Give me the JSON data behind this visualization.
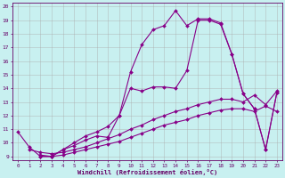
{
  "xlabel": "Windchill (Refroidissement éolien,°C)",
  "xlim": [
    -0.5,
    23.5
  ],
  "ylim": [
    8.7,
    20.3
  ],
  "xticks": [
    0,
    1,
    2,
    3,
    4,
    5,
    6,
    7,
    8,
    9,
    10,
    11,
    12,
    13,
    14,
    15,
    16,
    17,
    18,
    19,
    20,
    21,
    22,
    23
  ],
  "yticks": [
    9,
    10,
    11,
    12,
    13,
    14,
    15,
    16,
    17,
    18,
    19,
    20
  ],
  "bg_color": "#c8f0f0",
  "line_color": "#880088",
  "grid_color": "#aaaaaa",
  "lines": [
    {
      "x": [
        0,
        1,
        2,
        3,
        4,
        5,
        6,
        7,
        8,
        9,
        10,
        11,
        12,
        13,
        14,
        15,
        16,
        17,
        18,
        19,
        20,
        21,
        22,
        23
      ],
      "y": [
        10.8,
        9.7,
        9.0,
        9.0,
        9.5,
        9.8,
        10.2,
        10.5,
        10.4,
        12.0,
        15.2,
        17.2,
        18.3,
        18.6,
        19.7,
        18.6,
        19.1,
        19.1,
        18.8,
        16.5,
        13.6,
        12.5,
        9.5,
        13.7
      ]
    },
    {
      "x": [
        2,
        3,
        4,
        5,
        6,
        7,
        8,
        9,
        10,
        11,
        12,
        13,
        14,
        15,
        16,
        17,
        18,
        19,
        20,
        21,
        22,
        23
      ],
      "y": [
        9.0,
        9.0,
        9.5,
        10.0,
        10.5,
        10.8,
        11.2,
        12.0,
        14.0,
        13.8,
        14.1,
        14.1,
        14.0,
        15.3,
        19.0,
        19.0,
        18.7,
        16.5,
        13.6,
        12.5,
        9.5,
        13.7
      ]
    },
    {
      "x": [
        1,
        2,
        3,
        4,
        5,
        6,
        7,
        8,
        9,
        10,
        11,
        12,
        13,
        14,
        15,
        16,
        17,
        18,
        19,
        20,
        21,
        22,
        23
      ],
      "y": [
        9.5,
        9.3,
        9.2,
        9.3,
        9.5,
        9.7,
        10.0,
        10.3,
        10.6,
        11.0,
        11.3,
        11.7,
        12.0,
        12.3,
        12.5,
        12.8,
        13.0,
        13.2,
        13.2,
        13.0,
        13.5,
        12.8,
        13.8
      ]
    },
    {
      "x": [
        2,
        3,
        4,
        5,
        6,
        7,
        8,
        9,
        10,
        11,
        12,
        13,
        14,
        15,
        16,
        17,
        18,
        19,
        20,
        21,
        22,
        23
      ],
      "y": [
        9.1,
        9.0,
        9.1,
        9.3,
        9.5,
        9.7,
        9.9,
        10.1,
        10.4,
        10.7,
        11.0,
        11.3,
        11.5,
        11.7,
        12.0,
        12.2,
        12.4,
        12.5,
        12.5,
        12.3,
        12.7,
        12.3
      ]
    }
  ]
}
